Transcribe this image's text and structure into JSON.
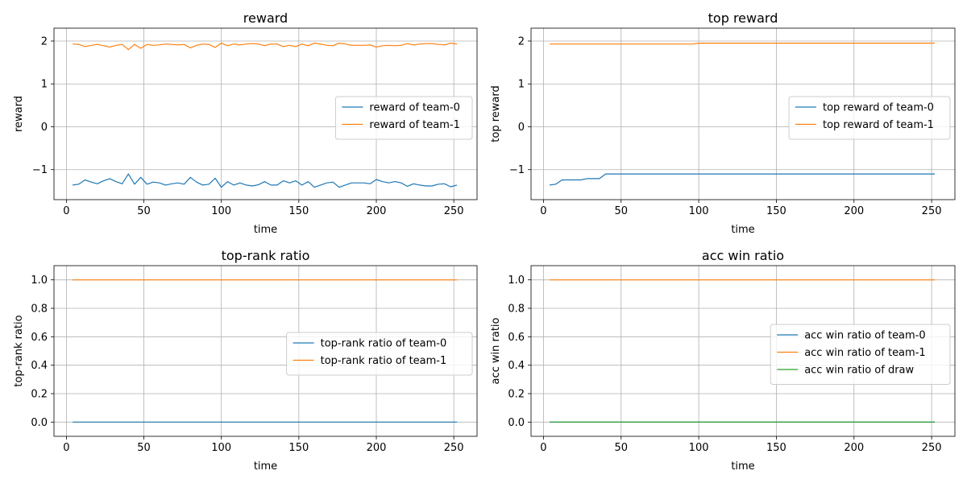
{
  "chart_data": [
    {
      "type": "line",
      "title": "reward",
      "xlabel": "time",
      "ylabel": "reward",
      "xlim": [
        -8,
        265
      ],
      "ylim": [
        -1.7,
        2.3
      ],
      "xticks": [
        0,
        50,
        100,
        150,
        200,
        250
      ],
      "xtick_labels": [
        "0",
        "50",
        "100",
        "150",
        "200",
        "250"
      ],
      "yticks": [
        -1,
        0,
        1,
        2
      ],
      "ytick_labels": [
        "−1",
        "0",
        "1",
        "2"
      ],
      "grid": true,
      "legend_position": "center-right",
      "x": [
        4,
        8,
        12,
        16,
        20,
        24,
        28,
        32,
        36,
        40,
        44,
        48,
        52,
        56,
        60,
        64,
        68,
        72,
        76,
        80,
        84,
        88,
        92,
        96,
        100,
        104,
        108,
        112,
        116,
        120,
        124,
        128,
        132,
        136,
        140,
        144,
        148,
        152,
        156,
        160,
        164,
        168,
        172,
        176,
        180,
        184,
        188,
        192,
        196,
        200,
        204,
        208,
        212,
        216,
        220,
        224,
        228,
        232,
        236,
        240,
        244,
        248,
        252
      ],
      "series": [
        {
          "name": "reward of team-0",
          "color": "#1f77b4",
          "values": [
            -1.36,
            -1.34,
            -1.24,
            -1.29,
            -1.33,
            -1.26,
            -1.21,
            -1.28,
            -1.33,
            -1.1,
            -1.34,
            -1.18,
            -1.34,
            -1.29,
            -1.31,
            -1.36,
            -1.33,
            -1.31,
            -1.34,
            -1.18,
            -1.29,
            -1.36,
            -1.34,
            -1.2,
            -1.41,
            -1.28,
            -1.36,
            -1.31,
            -1.36,
            -1.38,
            -1.35,
            -1.28,
            -1.36,
            -1.36,
            -1.26,
            -1.31,
            -1.26,
            -1.36,
            -1.28,
            -1.41,
            -1.36,
            -1.31,
            -1.29,
            -1.41,
            -1.36,
            -1.31,
            -1.31,
            -1.31,
            -1.33,
            -1.23,
            -1.28,
            -1.31,
            -1.28,
            -1.31,
            -1.39,
            -1.33,
            -1.36,
            -1.38,
            -1.38,
            -1.34,
            -1.33,
            -1.4,
            -1.36
          ]
        },
        {
          "name": "reward of team-1",
          "color": "#ff7f0e",
          "values": [
            1.93,
            1.92,
            1.87,
            1.9,
            1.92,
            1.89,
            1.86,
            1.9,
            1.92,
            1.8,
            1.92,
            1.83,
            1.92,
            1.9,
            1.91,
            1.93,
            1.92,
            1.91,
            1.92,
            1.84,
            1.9,
            1.93,
            1.92,
            1.85,
            1.95,
            1.89,
            1.93,
            1.91,
            1.93,
            1.94,
            1.93,
            1.89,
            1.93,
            1.93,
            1.87,
            1.9,
            1.87,
            1.93,
            1.89,
            1.95,
            1.93,
            1.9,
            1.89,
            1.95,
            1.93,
            1.9,
            1.9,
            1.9,
            1.91,
            1.86,
            1.89,
            1.9,
            1.89,
            1.9,
            1.94,
            1.91,
            1.93,
            1.94,
            1.94,
            1.92,
            1.91,
            1.95,
            1.93
          ]
        }
      ]
    },
    {
      "type": "line",
      "title": "top reward",
      "xlabel": "time",
      "ylabel": "top reward",
      "xlim": [
        -8,
        265
      ],
      "ylim": [
        -1.7,
        2.3
      ],
      "xticks": [
        0,
        50,
        100,
        150,
        200,
        250
      ],
      "xtick_labels": [
        "0",
        "50",
        "100",
        "150",
        "200",
        "250"
      ],
      "yticks": [
        -1,
        0,
        1,
        2
      ],
      "ytick_labels": [
        "−1",
        "0",
        "1",
        "2"
      ],
      "grid": true,
      "legend_position": "center-right",
      "x": [
        4,
        8,
        12,
        16,
        20,
        24,
        28,
        32,
        36,
        40,
        44,
        60,
        80,
        96,
        100,
        120,
        140,
        160,
        180,
        200,
        220,
        240,
        252
      ],
      "series": [
        {
          "name": "top reward of team-0",
          "color": "#1f77b4",
          "values": [
            -1.36,
            -1.34,
            -1.24,
            -1.24,
            -1.24,
            -1.24,
            -1.21,
            -1.21,
            -1.21,
            -1.1,
            -1.1,
            -1.1,
            -1.1,
            -1.1,
            -1.1,
            -1.1,
            -1.1,
            -1.1,
            -1.1,
            -1.1,
            -1.1,
            -1.1,
            -1.1
          ]
        },
        {
          "name": "top reward of team-1",
          "color": "#ff7f0e",
          "values": [
            1.93,
            1.93,
            1.93,
            1.93,
            1.93,
            1.93,
            1.93,
            1.93,
            1.93,
            1.93,
            1.93,
            1.93,
            1.93,
            1.93,
            1.95,
            1.95,
            1.95,
            1.95,
            1.95,
            1.95,
            1.95,
            1.95,
            1.95
          ]
        }
      ]
    },
    {
      "type": "line",
      "title": "top-rank ratio",
      "xlabel": "time",
      "ylabel": "top-rank ratio",
      "xlim": [
        -8,
        265
      ],
      "ylim": [
        -0.1,
        1.1
      ],
      "xticks": [
        0,
        50,
        100,
        150,
        200,
        250
      ],
      "xtick_labels": [
        "0",
        "50",
        "100",
        "150",
        "200",
        "250"
      ],
      "yticks": [
        0,
        0.2,
        0.4,
        0.6,
        0.8,
        1.0
      ],
      "ytick_labels": [
        "0.0",
        "0.2",
        "0.4",
        "0.6",
        "0.8",
        "1.0"
      ],
      "grid": true,
      "legend_position": "center-right",
      "x": [
        4,
        252
      ],
      "series": [
        {
          "name": "top-rank ratio of team-0",
          "color": "#1f77b4",
          "values": [
            0,
            0
          ]
        },
        {
          "name": "top-rank ratio of team-1",
          "color": "#ff7f0e",
          "values": [
            1,
            1
          ]
        }
      ]
    },
    {
      "type": "line",
      "title": "acc win ratio",
      "xlabel": "time",
      "ylabel": "acc win ratio",
      "xlim": [
        -8,
        265
      ],
      "ylim": [
        -0.1,
        1.1
      ],
      "xticks": [
        0,
        50,
        100,
        150,
        200,
        250
      ],
      "xtick_labels": [
        "0",
        "50",
        "100",
        "150",
        "200",
        "250"
      ],
      "yticks": [
        0,
        0.2,
        0.4,
        0.6,
        0.8,
        1.0
      ],
      "ytick_labels": [
        "0.0",
        "0.2",
        "0.4",
        "0.6",
        "0.8",
        "1.0"
      ],
      "grid": true,
      "legend_position": "center-right",
      "x": [
        4,
        252
      ],
      "series": [
        {
          "name": "acc win ratio of team-0",
          "color": "#1f77b4",
          "values": [
            0,
            0
          ]
        },
        {
          "name": "acc win ratio of team-1",
          "color": "#ff7f0e",
          "values": [
            1,
            1
          ]
        },
        {
          "name": "acc win ratio of draw",
          "color": "#2ca02c",
          "values": [
            0,
            0
          ]
        }
      ]
    }
  ]
}
